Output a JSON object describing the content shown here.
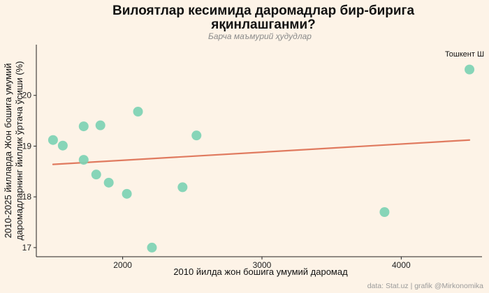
{
  "chart_data": {
    "type": "scatter",
    "title_line1": "Вилоятлар кесимида даромадлар бир-бирига",
    "title_line2": "яқинлашганми?",
    "subtitle": "Барча маъмурий ҳудудлар",
    "xlabel": "2010 йилда жон бошига умумий даромад",
    "ylabel_line1": "2010-2025 йилларда Жон бошига умумий",
    "ylabel_line2": "даромадларнинг йиллик ўртача ўсиши (%)",
    "xlim": [
      1380,
      4580
    ],
    "ylim": [
      16.82,
      21.0
    ],
    "xticks": [
      2000,
      3000,
      4000
    ],
    "yticks": [
      17,
      18,
      19,
      20
    ],
    "points": [
      {
        "x": 1500,
        "y": 19.12
      },
      {
        "x": 1570,
        "y": 19.01
      },
      {
        "x": 1720,
        "y": 19.39
      },
      {
        "x": 1720,
        "y": 18.73
      },
      {
        "x": 1810,
        "y": 18.44
      },
      {
        "x": 1840,
        "y": 19.41
      },
      {
        "x": 1900,
        "y": 18.28
      },
      {
        "x": 2030,
        "y": 18.06
      },
      {
        "x": 2110,
        "y": 19.68
      },
      {
        "x": 2210,
        "y": 17.0
      },
      {
        "x": 2430,
        "y": 18.19
      },
      {
        "x": 2530,
        "y": 19.21
      },
      {
        "x": 3880,
        "y": 17.7
      },
      {
        "x": 4490,
        "y": 20.51
      }
    ],
    "trend": {
      "x": [
        1500,
        4490
      ],
      "y": [
        18.64,
        19.12
      ]
    },
    "annotation": {
      "text": "Тошкент Ш",
      "x": 4490,
      "y": 20.51
    },
    "caption": "data:  Stat.uz | grafik @Mirkonomika",
    "colors": {
      "point": "#7DD3B4",
      "trend": "#E07A5F",
      "background": "#FDF3E7"
    }
  }
}
